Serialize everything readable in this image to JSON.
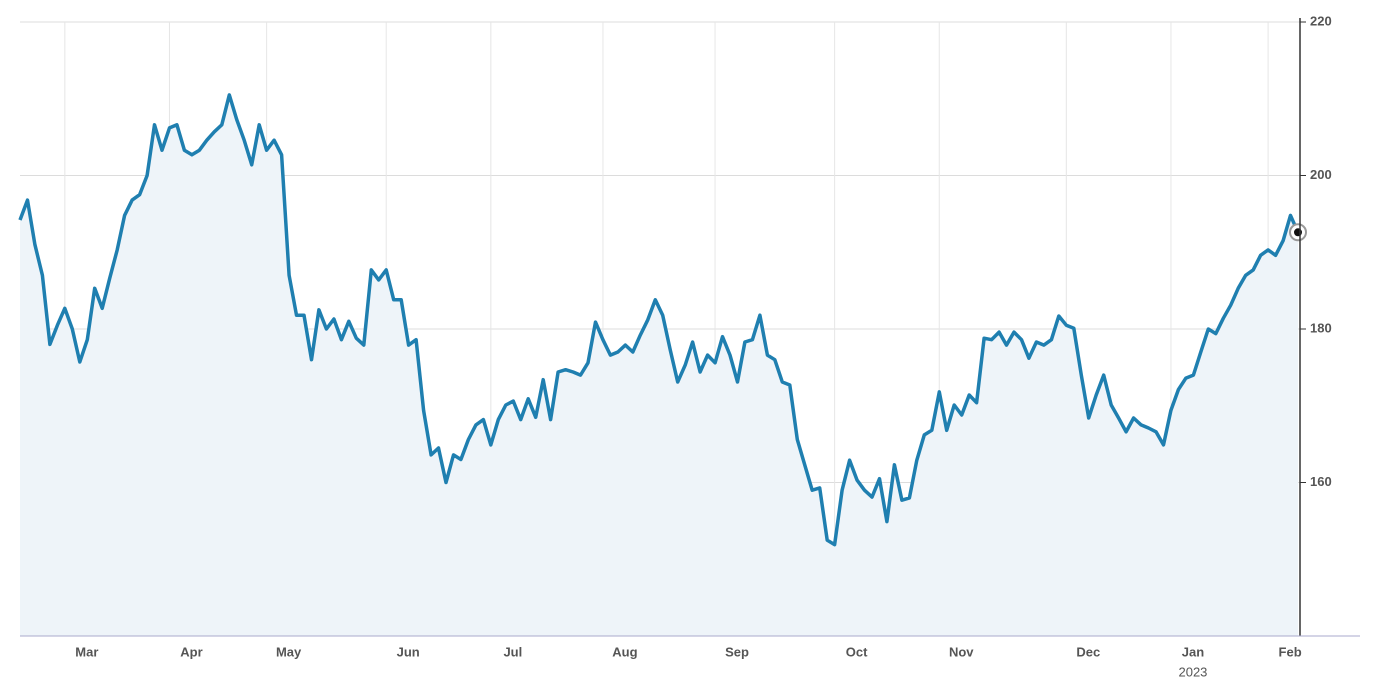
{
  "chart_data": {
    "type": "line",
    "categories": [
      null,
      null,
      null,
      null,
      null,
      null,
      "Mar",
      null,
      null,
      null,
      null,
      null,
      null,
      null,
      null,
      null,
      null,
      null,
      null,
      null,
      "Apr",
      null,
      null,
      null,
      null,
      null,
      null,
      null,
      null,
      null,
      null,
      null,
      null,
      "May",
      null,
      null,
      null,
      null,
      null,
      null,
      null,
      null,
      null,
      null,
      null,
      null,
      null,
      null,
      null,
      "Jun",
      null,
      null,
      null,
      null,
      null,
      null,
      null,
      null,
      null,
      null,
      null,
      null,
      null,
      "Jul",
      null,
      null,
      null,
      null,
      null,
      null,
      null,
      null,
      null,
      null,
      null,
      null,
      null,
      null,
      "Aug",
      null,
      null,
      null,
      null,
      null,
      null,
      null,
      null,
      null,
      null,
      null,
      null,
      null,
      null,
      "Sep",
      null,
      null,
      null,
      null,
      null,
      null,
      null,
      null,
      null,
      null,
      null,
      null,
      null,
      null,
      null,
      "Oct",
      null,
      null,
      null,
      null,
      null,
      null,
      null,
      null,
      null,
      null,
      null,
      null,
      null,
      "Nov",
      null,
      null,
      null,
      null,
      null,
      null,
      null,
      null,
      null,
      null,
      null,
      null,
      null,
      null,
      null,
      null,
      "Dec",
      null,
      null,
      null,
      null,
      null,
      null,
      null,
      null,
      null,
      null,
      null,
      null,
      null,
      "Jan",
      null,
      null,
      null,
      null,
      null,
      null,
      null,
      null,
      null,
      null,
      null,
      null,
      "Feb",
      null,
      null,
      null,
      null
    ],
    "year_label": "2023",
    "values": [
      194.2,
      196.8,
      191,
      187,
      178,
      180.5,
      182.7,
      180,
      175.7,
      178.6,
      185.3,
      182.7,
      186.6,
      190.3,
      194.8,
      196.8,
      197.5,
      200,
      206.6,
      203.3,
      206.2,
      206.6,
      203.3,
      202.7,
      203.3,
      204.6,
      205.7,
      206.6,
      210.5,
      207.3,
      204.6,
      201.4,
      206.6,
      203.3,
      204.6,
      202.7,
      187,
      181.8,
      181.8,
      176,
      182.5,
      180,
      181.3,
      178.6,
      181,
      178.8,
      177.9,
      187.7,
      186.4,
      187.7,
      183.8,
      183.8,
      177.9,
      178.6,
      169.4,
      163.6,
      164.5,
      160,
      163.6,
      163,
      165.6,
      167.5,
      168.2,
      164.9,
      168.2,
      170.1,
      170.6,
      168.2,
      170.9,
      168.5,
      173.4,
      168.2,
      174.4,
      174.7,
      174.4,
      174,
      175.6,
      180.9,
      178.6,
      176.6,
      177,
      177.9,
      177,
      179.2,
      181.2,
      183.8,
      181.8,
      177.3,
      173.1,
      175.3,
      178.3,
      174.4,
      176.6,
      175.6,
      179,
      176.6,
      173.1,
      178.3,
      178.6,
      181.8,
      176.6,
      176,
      173.1,
      172.7,
      165.6,
      162.3,
      159,
      159.3,
      152.5,
      151.9,
      159,
      162.9,
      160.3,
      159,
      158.1,
      160.5,
      154.9,
      162.3,
      157.7,
      158,
      162.9,
      166.2,
      166.8,
      171.8,
      166.8,
      170.1,
      168.8,
      171.4,
      170.4,
      178.8,
      178.6,
      179.6,
      177.9,
      179.6,
      178.6,
      176.2,
      178.3,
      177.9,
      178.6,
      181.7,
      180.5,
      180.1,
      174,
      168.4,
      171.4,
      174,
      170.1,
      168.4,
      166.6,
      168.4,
      167.5,
      167.1,
      166.6,
      164.9,
      169.4,
      172.1,
      173.6,
      174,
      177,
      180,
      179.4,
      181.4,
      183.1,
      185.3,
      187,
      187.7,
      189.6,
      190.3,
      189.6,
      191.5,
      194.8,
      192.6
    ],
    "color": "#1f7fb0",
    "area_color": "#eef4f9",
    "ylim": [
      140,
      220
    ],
    "yticks": [
      160,
      180,
      200,
      220
    ],
    "grid": true
  }
}
